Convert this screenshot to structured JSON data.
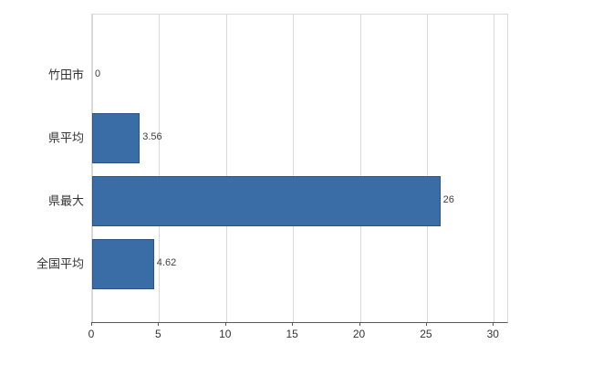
{
  "chart_data": {
    "type": "bar",
    "orientation": "horizontal",
    "title": "",
    "xlabel": "",
    "ylabel": "",
    "categories": [
      "竹田市",
      "県平均",
      "県最大",
      "全国平均"
    ],
    "values": [
      0,
      3.56,
      26,
      4.62
    ],
    "value_labels": [
      "0",
      "3.56",
      "26",
      "4.62"
    ],
    "xlim": [
      0,
      31
    ],
    "xticks": [
      0,
      5,
      10,
      15,
      20,
      25,
      30
    ],
    "grid": "vertical",
    "legend": "none",
    "colors": {
      "bar_fill": "#3A6CA6",
      "bar_border": "#2B5486",
      "gridline": "#D9D9D9",
      "axis_line": "#595959",
      "tick_text": "#333333",
      "value_text": "#404040",
      "background": "#FFFFFF"
    }
  }
}
